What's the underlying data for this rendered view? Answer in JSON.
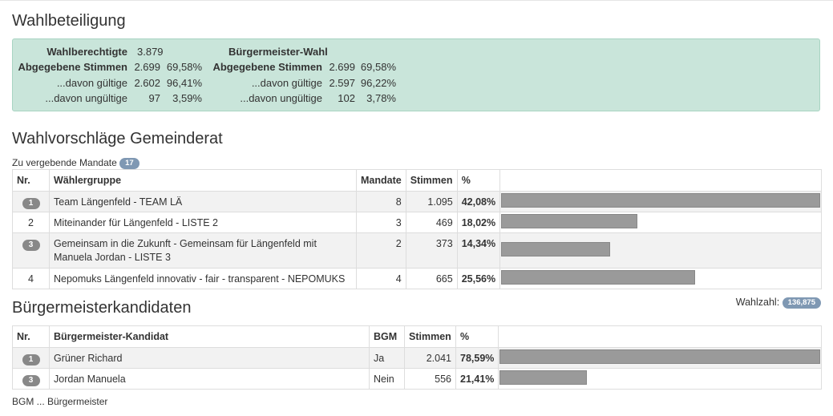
{
  "turnout": {
    "title": "Wahlbeteiligung",
    "gemeinderat": {
      "rows": [
        {
          "label": "Wahlberechtigte",
          "value": "3.879",
          "pct": ""
        },
        {
          "label": "Abgegebene Stimmen",
          "value": "2.699",
          "pct": "69,58%"
        },
        {
          "label": "...davon gültige",
          "value": "2.602",
          "pct": "96,41%"
        },
        {
          "label": "...davon ungültige",
          "value": "97",
          "pct": "3,59%"
        }
      ]
    },
    "bgm": {
      "title": "Bürgermeister-Wahl",
      "rows": [
        {
          "label": "Abgegebene Stimmen",
          "value": "2.699",
          "pct": "69,58%"
        },
        {
          "label": "...davon gültige",
          "value": "2.597",
          "pct": "96,22%"
        },
        {
          "label": "...davon ungültige",
          "value": "102",
          "pct": "3,78%"
        }
      ]
    }
  },
  "gemeinderat": {
    "title": "Wahlvorschläge Gemeinderat",
    "mandates_label": "Zu vergebende Mandate",
    "mandates_count": "17",
    "headers": {
      "nr": "Nr.",
      "group": "Wählergruppe",
      "mandate": "Mandate",
      "votes": "Stimmen",
      "pct": "%"
    },
    "rows": [
      {
        "nr": "1",
        "rank_badge": true,
        "group": "Team Längenfeld - TEAM LÄ",
        "mandate": "8",
        "votes": "1.095",
        "pct": "42,08%",
        "bar_fraction": 1.0
      },
      {
        "nr": "2",
        "rank_badge": false,
        "group": "Miteinander für Längenfeld - LISTE 2",
        "mandate": "3",
        "votes": "469",
        "pct": "18,02%",
        "bar_fraction": 0.428
      },
      {
        "nr": "3",
        "rank_badge": true,
        "group": "Gemeinsam in die Zukunft - Gemeinsam für Längenfeld mit Manuela Jordan - LISTE 3",
        "mandate": "2",
        "votes": "373",
        "pct": "14,34%",
        "bar_fraction": 0.341
      },
      {
        "nr": "4",
        "rank_badge": false,
        "group": "Nepomuks Längenfeld innovativ - fair - transparent - NEPOMUKS",
        "mandate": "4",
        "votes": "665",
        "pct": "25,56%",
        "bar_fraction": 0.607
      }
    ],
    "wahlzahl_label": "Wahlzahl:",
    "wahlzahl_value": "136,875"
  },
  "bgm_candidates": {
    "title": "Bürgermeisterkandidaten",
    "headers": {
      "nr": "Nr.",
      "candidate": "Bürgermeister-Kandidat",
      "bgm": "BGM",
      "votes": "Stimmen",
      "pct": "%"
    },
    "rows": [
      {
        "nr": "1",
        "candidate": "Grüner Richard",
        "bgm": "Ja",
        "votes": "2.041",
        "pct": "78,59%",
        "bar_fraction": 1.0
      },
      {
        "nr": "3",
        "candidate": "Jordan Manuela",
        "bgm": "Nein",
        "votes": "556",
        "pct": "21,41%",
        "bar_fraction": 0.272
      }
    ],
    "footnote": "BGM ... Bürgermeister"
  },
  "colors": {
    "panel_bg": "#c9e5da",
    "bar": "#9a9a9a",
    "badge_blue": "#7f98b3",
    "badge_gray": "#888888"
  }
}
